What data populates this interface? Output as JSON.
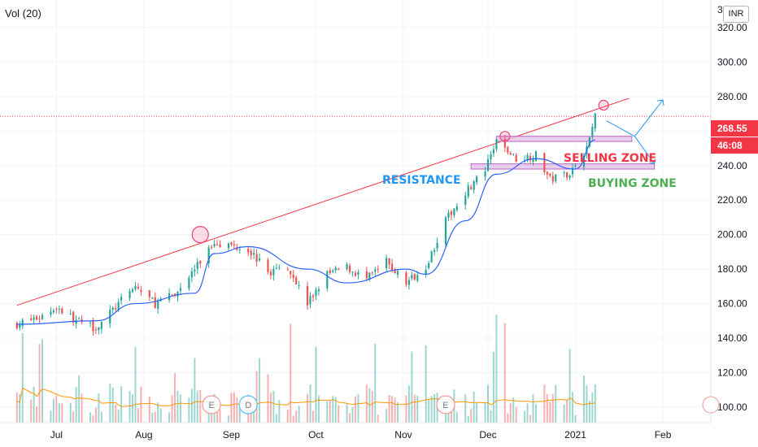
{
  "header": {
    "indicator_label": "Vol (20)",
    "currency_label": "INR"
  },
  "price_tags": {
    "last_price": "268.55",
    "countdown": "46:08"
  },
  "colors": {
    "up": "#26a69a",
    "down": "#ef5350",
    "ma_line": "#2962ff",
    "trendline": "#f23645",
    "zone_fill": "#e1bee7",
    "zone_border": "#ba68c8",
    "resistance_text": "#2196f3",
    "selling_text": "#f23645",
    "buying_text": "#4caf50",
    "vol_ma": "#ff9800",
    "marker": "#ec407a"
  },
  "chart_data": {
    "type": "candlestick",
    "indicator": "Vol (20)",
    "currency": "INR",
    "ylim": [
      91,
      336
    ],
    "y_ticks": [
      "320.00",
      "300.00",
      "280.00",
      "260.00",
      "240.00",
      "220.00",
      "200.00",
      "180.00",
      "160.00",
      "140.00",
      "120.00",
      "100.00"
    ],
    "top_tick_partial": "3",
    "x_ticks": [
      "Jul",
      "Aug",
      "Sep",
      "Oct",
      "Nov",
      "Dec",
      "2021",
      "Feb"
    ],
    "last_price": 268.55,
    "countdown": "46:08",
    "price_path": [
      {
        "date": "2020-06-17",
        "close": 148
      },
      {
        "date": "2020-06-25",
        "close": 152
      },
      {
        "date": "2020-07-01",
        "close": 158
      },
      {
        "date": "2020-07-08",
        "close": 150
      },
      {
        "date": "2020-07-15",
        "close": 146
      },
      {
        "date": "2020-07-22",
        "close": 158
      },
      {
        "date": "2020-07-29",
        "close": 170
      },
      {
        "date": "2020-08-05",
        "close": 160
      },
      {
        "date": "2020-08-12",
        "close": 165
      },
      {
        "date": "2020-08-19",
        "close": 180
      },
      {
        "date": "2020-08-26",
        "close": 196
      },
      {
        "date": "2020-08-31",
        "close": 194
      },
      {
        "date": "2020-09-07",
        "close": 192
      },
      {
        "date": "2020-09-14",
        "close": 178
      },
      {
        "date": "2020-09-21",
        "close": 182
      },
      {
        "date": "2020-09-28",
        "close": 160
      },
      {
        "date": "2020-10-05",
        "close": 177
      },
      {
        "date": "2020-10-12",
        "close": 181
      },
      {
        "date": "2020-10-19",
        "close": 174
      },
      {
        "date": "2020-10-26",
        "close": 184
      },
      {
        "date": "2020-11-02",
        "close": 172
      },
      {
        "date": "2020-11-09",
        "close": 182
      },
      {
        "date": "2020-11-16",
        "close": 208
      },
      {
        "date": "2020-11-23",
        "close": 225
      },
      {
        "date": "2020-11-30",
        "close": 237
      },
      {
        "date": "2020-12-04",
        "close": 254
      },
      {
        "date": "2020-12-11",
        "close": 244
      },
      {
        "date": "2020-12-18",
        "close": 246
      },
      {
        "date": "2020-12-23",
        "close": 232
      },
      {
        "date": "2020-12-30",
        "close": 236
      },
      {
        "date": "2021-01-05",
        "close": 250
      },
      {
        "date": "2021-01-08",
        "close": 268.55
      }
    ],
    "moving_average": [
      {
        "date": "2020-06-17",
        "value": 148
      },
      {
        "date": "2020-07-15",
        "value": 150
      },
      {
        "date": "2020-07-29",
        "value": 160
      },
      {
        "date": "2020-08-19",
        "value": 166
      },
      {
        "date": "2020-08-26",
        "value": 189
      },
      {
        "date": "2020-09-07",
        "value": 193
      },
      {
        "date": "2020-09-28",
        "value": 180
      },
      {
        "date": "2020-10-12",
        "value": 172
      },
      {
        "date": "2020-11-02",
        "value": 180
      },
      {
        "date": "2020-11-09",
        "value": 177
      },
      {
        "date": "2020-11-23",
        "value": 208
      },
      {
        "date": "2020-12-04",
        "value": 235
      },
      {
        "date": "2020-12-18",
        "value": 244
      },
      {
        "date": "2021-01-01",
        "value": 238
      },
      {
        "date": "2021-01-08",
        "value": 255
      }
    ],
    "resistance_line": [
      {
        "date": "2020-06-17",
        "value": 159
      },
      {
        "date": "2021-01-20",
        "value": 279
      }
    ],
    "zones": [
      {
        "label": "SELLING ZONE",
        "from": 254,
        "to": 257,
        "start": "2020-12-04",
        "end": "2021-01-21"
      },
      {
        "label": "BUYING ZONE",
        "from": 238,
        "to": 241,
        "start": "2020-11-25",
        "end": "2021-01-29"
      }
    ],
    "annotations": [
      "RESISTANCE",
      "SELLING ZONE",
      "BUYING ZONE"
    ],
    "event_markers": [
      "E",
      "D",
      "E"
    ]
  }
}
